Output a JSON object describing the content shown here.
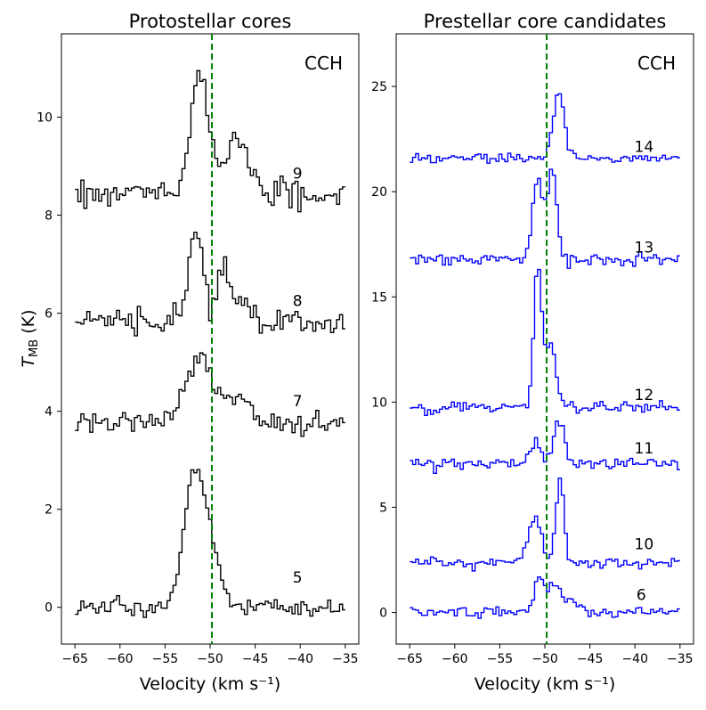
{
  "figure": {
    "shared_ylabel": "T_MB (K)",
    "shared_ylabel_main": "T",
    "shared_ylabel_sub": "MB",
    "shared_ylabel_unit": " (K)"
  },
  "chart_data": [
    {
      "type": "line",
      "style": "step",
      "title": "Protostellar cores",
      "molecule": "CCH",
      "xlabel": "Velocity (km s⁻¹)",
      "xlim": [
        -66.5,
        -33.5
      ],
      "ylim": [
        -0.75,
        11.7
      ],
      "xticks": [
        -65,
        -60,
        -55,
        -50,
        -45,
        -40,
        -35
      ],
      "yticks": [
        0,
        2,
        4,
        6,
        8,
        10
      ],
      "reference_velocity": -49.8,
      "line_color": "#000000",
      "reference_color": "#008000",
      "series": [
        {
          "name": "5",
          "baseline": 0.0,
          "noise": 0.09,
          "seed": 5,
          "components": [
            {
              "center": -51.8,
              "amp": 2.9,
              "sigma": 1.2
            },
            {
              "center": -49.6,
              "amp": 0.7,
              "sigma": 0.8
            }
          ]
        },
        {
          "name": "7",
          "baseline": 3.75,
          "noise": 0.12,
          "seed": 7,
          "components": [
            {
              "center": -51.5,
              "amp": 1.35,
              "sigma": 1.5
            },
            {
              "center": -47.5,
              "amp": 0.55,
              "sigma": 1.4
            }
          ]
        },
        {
          "name": "8",
          "baseline": 5.85,
          "noise": 0.14,
          "seed": 8,
          "components": [
            {
              "center": -51.7,
              "amp": 1.85,
              "sigma": 0.8
            },
            {
              "center": -48.6,
              "amp": 1.05,
              "sigma": 0.6
            },
            {
              "center": -46.5,
              "amp": 0.5,
              "sigma": 1.0
            }
          ]
        },
        {
          "name": "9",
          "baseline": 8.45,
          "noise": 0.14,
          "seed": 9,
          "components": [
            {
              "center": -51.4,
              "amp": 2.55,
              "sigma": 0.9
            },
            {
              "center": -47.5,
              "amp": 1.05,
              "sigma": 1.3
            }
          ]
        }
      ],
      "labels": [
        {
          "text": "5",
          "x": -40.3,
          "y": 0.5
        },
        {
          "text": "7",
          "x": -40.3,
          "y": 4.1
        },
        {
          "text": "8",
          "x": -40.3,
          "y": 6.15
        },
        {
          "text": "9",
          "x": -40.3,
          "y": 8.75
        }
      ]
    },
    {
      "type": "line",
      "style": "step",
      "title": "Prestellar core candidates",
      "molecule": "CCH",
      "xlabel": "Velocity (km s⁻¹)",
      "xlim": [
        -66.5,
        -33.5
      ],
      "ylim": [
        -1.5,
        27.5
      ],
      "xticks": [
        -65,
        -60,
        -55,
        -50,
        -45,
        -40,
        -35
      ],
      "yticks": [
        0,
        5,
        10,
        15,
        20,
        25
      ],
      "reference_velocity": -49.8,
      "line_color": "#0000ff",
      "reference_color": "#008000",
      "series": [
        {
          "name": "6",
          "baseline": 0.0,
          "noise": 0.12,
          "seed": 6,
          "components": [
            {
              "center": -50.7,
              "amp": 1.6,
              "sigma": 0.6
            },
            {
              "center": -49.0,
              "amp": 1.3,
              "sigma": 0.6
            },
            {
              "center": -47.2,
              "amp": 0.5,
              "sigma": 0.9
            }
          ]
        },
        {
          "name": "10",
          "baseline": 2.4,
          "noise": 0.12,
          "seed": 10,
          "components": [
            {
              "center": -51.3,
              "amp": 2.2,
              "sigma": 0.7
            },
            {
              "center": -48.5,
              "amp": 4.0,
              "sigma": 0.45
            }
          ]
        },
        {
          "name": "11",
          "baseline": 7.1,
          "noise": 0.15,
          "seed": 11,
          "components": [
            {
              "center": -51.2,
              "amp": 0.9,
              "sigma": 0.6
            },
            {
              "center": -48.6,
              "amp": 2.0,
              "sigma": 0.6
            }
          ]
        },
        {
          "name": "12",
          "baseline": 9.8,
          "noise": 0.14,
          "seed": 12,
          "components": [
            {
              "center": -51.0,
              "amp": 6.2,
              "sigma": 0.4
            },
            {
              "center": -49.7,
              "amp": 3.0,
              "sigma": 0.7
            }
          ]
        },
        {
          "name": "13",
          "baseline": 16.8,
          "noise": 0.15,
          "seed": 13,
          "components": [
            {
              "center": -50.9,
              "amp": 3.7,
              "sigma": 0.6
            },
            {
              "center": -49.3,
              "amp": 4.2,
              "sigma": 0.5
            }
          ]
        },
        {
          "name": "14",
          "baseline": 21.6,
          "noise": 0.1,
          "seed": 14,
          "components": [
            {
              "center": -48.6,
              "amp": 3.2,
              "sigma": 0.6
            }
          ]
        }
      ],
      "labels": [
        {
          "text": "6",
          "x": -39.3,
          "y": 0.6
        },
        {
          "text": "10",
          "x": -39.0,
          "y": 3.0
        },
        {
          "text": "11",
          "x": -39.0,
          "y": 7.55
        },
        {
          "text": "12",
          "x": -39.0,
          "y": 10.1
        },
        {
          "text": "13",
          "x": -39.0,
          "y": 17.1
        },
        {
          "text": "14",
          "x": -39.0,
          "y": 21.9
        }
      ]
    }
  ]
}
